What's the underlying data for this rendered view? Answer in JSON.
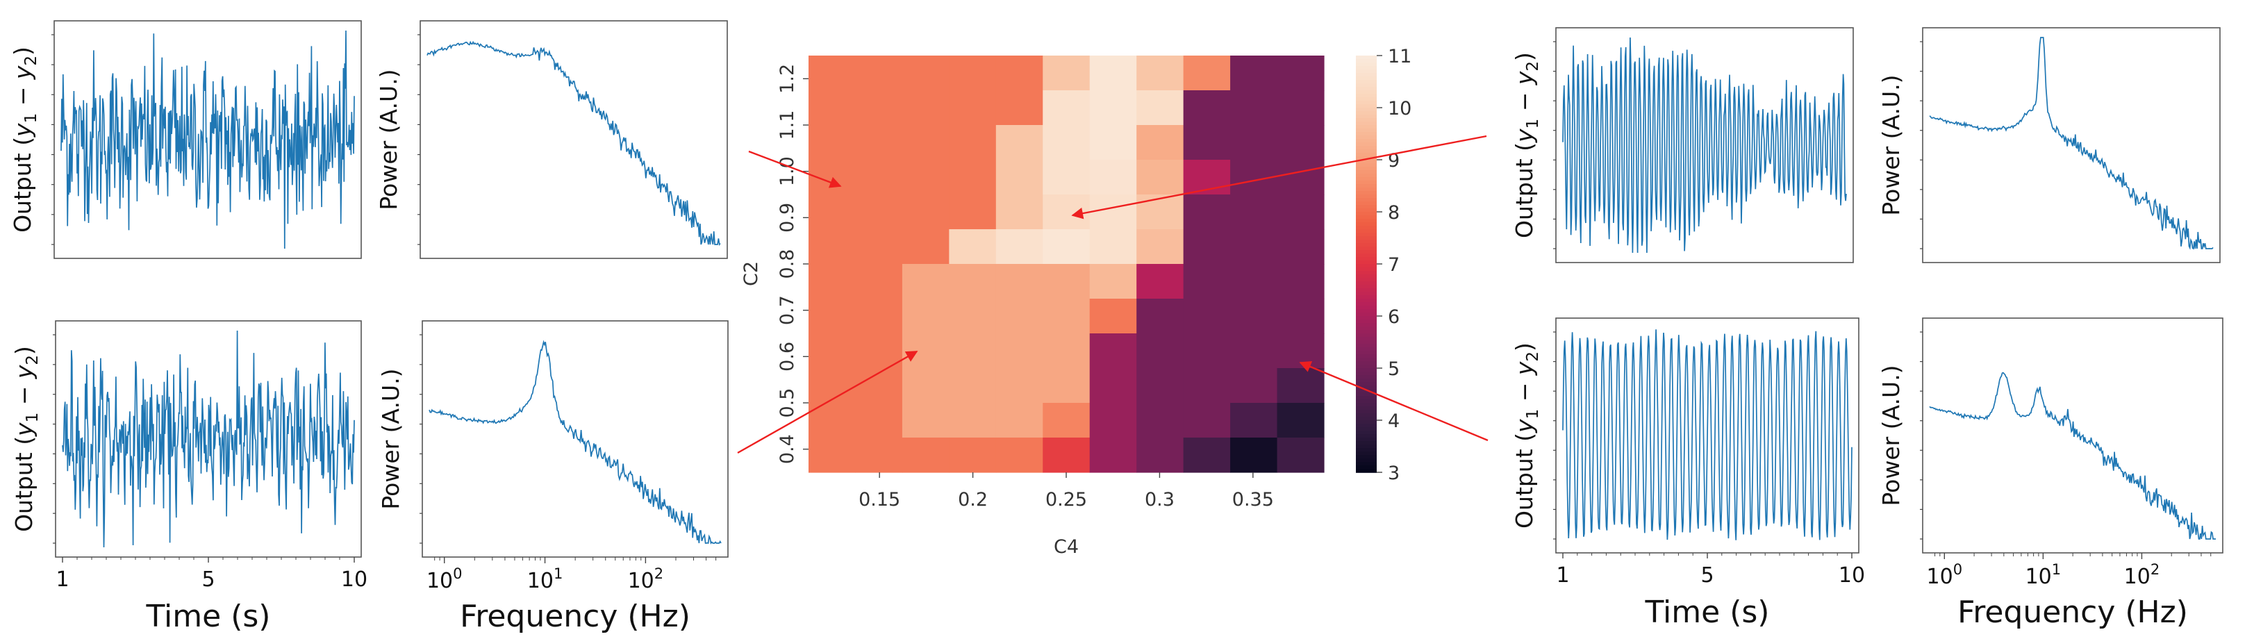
{
  "colors": {
    "trace": "#1f77b4",
    "arrow": "#ee1f1f",
    "axis": "#444444",
    "frame": "#555555",
    "colormap": [
      "#03051a",
      "#2f1b3e",
      "#5a1e52",
      "#86215c",
      "#b6205a",
      "#e13342",
      "#f06043",
      "#f6906b",
      "#f8b592",
      "#fad6bc",
      "#faebdd"
    ]
  },
  "chart_data": [
    {
      "id": "ts_tl",
      "type": "line",
      "ylabel_parts": [
        "Output (",
        "y",
        "1",
        "−",
        "y",
        "2",
        ")"
      ],
      "signal": "broadband-noise"
    },
    {
      "id": "psd_tl",
      "type": "line",
      "ylabel": "Power (A.U.)",
      "signal": "flat-then-decay"
    },
    {
      "id": "ts_bl",
      "type": "line",
      "ylabel_parts": [
        "Output (",
        "y",
        "1",
        "−",
        "y",
        "2",
        ")"
      ],
      "xlabel": "Time (s)",
      "xticks": [
        "1",
        "5",
        "10"
      ],
      "signal": "noisy-alpha"
    },
    {
      "id": "psd_bl",
      "type": "line",
      "ylabel": "Power (A.U.)",
      "xlabel": "Frequency (Hz)",
      "xscale": "log",
      "xticks": [
        {
          "base": "10",
          "exp": "0"
        },
        {
          "base": "10",
          "exp": "1"
        },
        {
          "base": "10",
          "exp": "2"
        }
      ],
      "peak_hz": 10,
      "signal": "alpha-peak"
    },
    {
      "id": "heatmap",
      "type": "heatmap",
      "xlabel": "C4",
      "ylabel": "C2",
      "xticks": [
        "0.15",
        "0.2",
        "0.25",
        "0.3",
        "0.35"
      ],
      "yticks": [
        "0.4",
        "0.5",
        "0.6",
        "0.7",
        "0.8",
        "0.9",
        "1.0",
        "1.1",
        "1.2"
      ],
      "colorbar_ticks": [
        "3",
        "4",
        "5",
        "6",
        "7",
        "8",
        "9",
        "10",
        "11"
      ],
      "zlim": [
        3,
        11
      ],
      "values_top_to_bottom": [
        [
          8.2,
          8.2,
          8.2,
          8.2,
          8.2,
          9.8,
          10.8,
          9.8,
          8.5,
          5.1,
          5.1
        ],
        [
          8.2,
          8.2,
          8.2,
          8.2,
          8.2,
          10.6,
          10.8,
          10.5,
          5.1,
          5.1,
          5.1
        ],
        [
          8.2,
          8.2,
          8.2,
          8.2,
          9.8,
          10.6,
          10.8,
          9.2,
          5.1,
          5.1,
          5.1
        ],
        [
          8.2,
          8.2,
          8.2,
          8.2,
          9.8,
          10.6,
          10.7,
          9.4,
          6.2,
          5.1,
          5.1
        ],
        [
          8.2,
          8.2,
          8.2,
          8.2,
          9.8,
          10.4,
          10.6,
          9.8,
          5.1,
          5.1,
          5.1
        ],
        [
          8.2,
          8.2,
          8.2,
          10.2,
          10.6,
          10.8,
          10.6,
          9.6,
          5.1,
          5.1,
          5.1
        ],
        [
          8.2,
          8.2,
          9.1,
          9.1,
          9.1,
          9.1,
          9.5,
          6.2,
          5.1,
          5.1,
          5.1
        ],
        [
          8.2,
          8.2,
          9.1,
          9.1,
          9.1,
          9.1,
          8.2,
          5.1,
          5.1,
          5.1,
          5.1
        ],
        [
          8.2,
          8.2,
          9.1,
          9.1,
          9.1,
          9.1,
          5.7,
          5.1,
          5.1,
          5.1,
          5.1
        ],
        [
          8.2,
          8.2,
          9.1,
          9.1,
          9.1,
          9.1,
          5.7,
          5.1,
          5.1,
          5.1,
          4.3
        ],
        [
          8.2,
          8.2,
          9.1,
          9.1,
          9.1,
          8.4,
          5.7,
          5.1,
          5.1,
          4.3,
          3.6
        ],
        [
          8.2,
          8.2,
          8.2,
          8.2,
          8.2,
          7.2,
          5.7,
          5.1,
          4.2,
          3.3,
          4.1
        ]
      ]
    },
    {
      "id": "ts_tr",
      "type": "line",
      "ylabel_parts": [
        "Output (",
        "y",
        "1",
        "−",
        "y",
        "2",
        ")"
      ],
      "signal": "modulated-oscillation"
    },
    {
      "id": "psd_tr",
      "type": "line",
      "ylabel": "Power (A.U.)",
      "peak_hz": 10,
      "signal": "sharp-peak"
    },
    {
      "id": "ts_br",
      "type": "line",
      "ylabel_parts": [
        "Output (",
        "y",
        "1",
        "−",
        "y",
        "2",
        ")"
      ],
      "xlabel": "Time (s)",
      "xticks": [
        "1",
        "5",
        "10"
      ],
      "signal": "regular-oscillation"
    },
    {
      "id": "psd_br",
      "type": "line",
      "ylabel": "Power (A.U.)",
      "xlabel": "Frequency (Hz)",
      "xscale": "log",
      "xticks": [
        {
          "base": "10",
          "exp": "0"
        },
        {
          "base": "10",
          "exp": "1"
        },
        {
          "base": "10",
          "exp": "2"
        }
      ],
      "peak_hz": 4,
      "signal": "double-peak"
    }
  ]
}
